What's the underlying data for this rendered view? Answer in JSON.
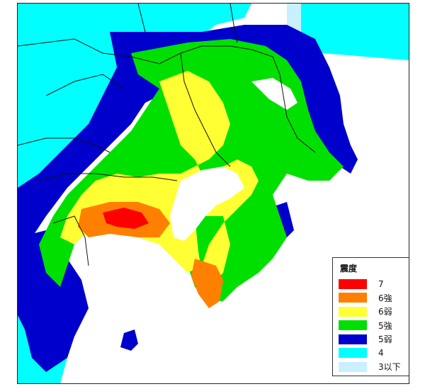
{
  "legend": {
    "title": "震度",
    "items": [
      {
        "label": "7",
        "color": "#ff0000"
      },
      {
        "label": "6強",
        "color": "#ff8000"
      },
      {
        "label": "6弱",
        "color": "#ffff33"
      },
      {
        "label": "5強",
        "color": "#00e000"
      },
      {
        "label": "5弱",
        "color": "#0000cc"
      },
      {
        "label": "4",
        "color": "#00ffff"
      },
      {
        "label": "3以下",
        "color": "#c8f0ff"
      }
    ]
  },
  "colors": {
    "sea": "#ffffff",
    "border": "#111111",
    "frame": "#222222"
  }
}
